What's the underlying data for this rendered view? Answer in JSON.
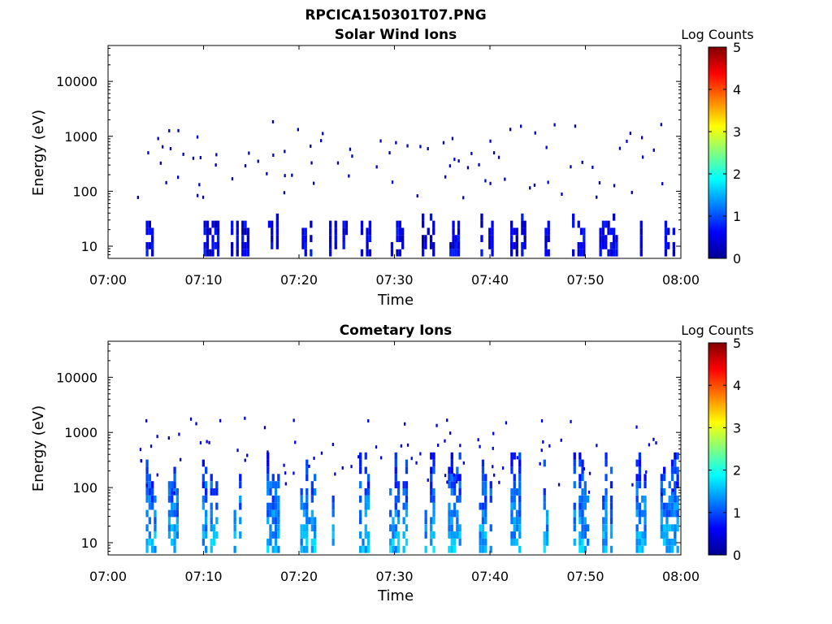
{
  "figure": {
    "title": "RPCICA150301T07.PNG"
  },
  "chart_data": [
    {
      "type": "heatmap",
      "title": "Solar Wind Ions",
      "xlabel": "Time",
      "ylabel": "Energy (eV)",
      "x_ticks": [
        "07:00",
        "07:10",
        "07:20",
        "07:30",
        "07:40",
        "07:50",
        "08:00"
      ],
      "y_ticks": [
        {
          "value": 10,
          "label": "10"
        },
        {
          "value": 100,
          "label": "100"
        },
        {
          "value": 1000,
          "label": "1000"
        },
        {
          "value": 10000,
          "label": "10000"
        }
      ],
      "xlim": [
        "07:00",
        "08:00"
      ],
      "ylim": [
        6,
        45000
      ],
      "y_scale": "log",
      "colorbar": {
        "label": "Log Counts",
        "range": [
          0,
          5
        ],
        "ticks": [
          "0",
          "1",
          "2",
          "3",
          "4",
          "5"
        ],
        "colormap": "jet"
      },
      "burst_times_min": [
        4.5,
        10.7,
        13.7,
        17.3,
        20.7,
        24.0,
        27.0,
        30.3,
        33.7,
        36.3,
        39.7,
        42.7,
        46.0,
        49.3,
        52.3,
        55.7,
        58.7
      ],
      "low_energy_level": 0.2,
      "scatter_level": 0.15
    },
    {
      "type": "heatmap",
      "title": "Cometary Ions",
      "xlabel": "Time",
      "ylabel": "Energy (eV)",
      "x_ticks": [
        "07:00",
        "07:10",
        "07:20",
        "07:30",
        "07:40",
        "07:50",
        "08:00"
      ],
      "y_ticks": [
        {
          "value": 10,
          "label": "10"
        },
        {
          "value": 100,
          "label": "100"
        },
        {
          "value": 1000,
          "label": "1000"
        },
        {
          "value": 10000,
          "label": "10000"
        }
      ],
      "xlim": [
        "07:00",
        "08:00"
      ],
      "ylim": [
        6,
        45000
      ],
      "y_scale": "log",
      "colorbar": {
        "label": "Log Counts",
        "range": [
          0,
          5
        ],
        "ticks": [
          "0",
          "1",
          "2",
          "3",
          "4",
          "5"
        ],
        "colormap": "jet"
      },
      "burst_times_min": [
        4.5,
        6.7,
        10.7,
        13.7,
        17.3,
        20.7,
        24.0,
        27.0,
        30.3,
        33.7,
        36.3,
        39.7,
        42.7,
        46.0,
        49.3,
        52.3,
        55.7,
        58.7
      ],
      "low_energy_level": 1.3,
      "scatter_level": 0.3
    }
  ]
}
